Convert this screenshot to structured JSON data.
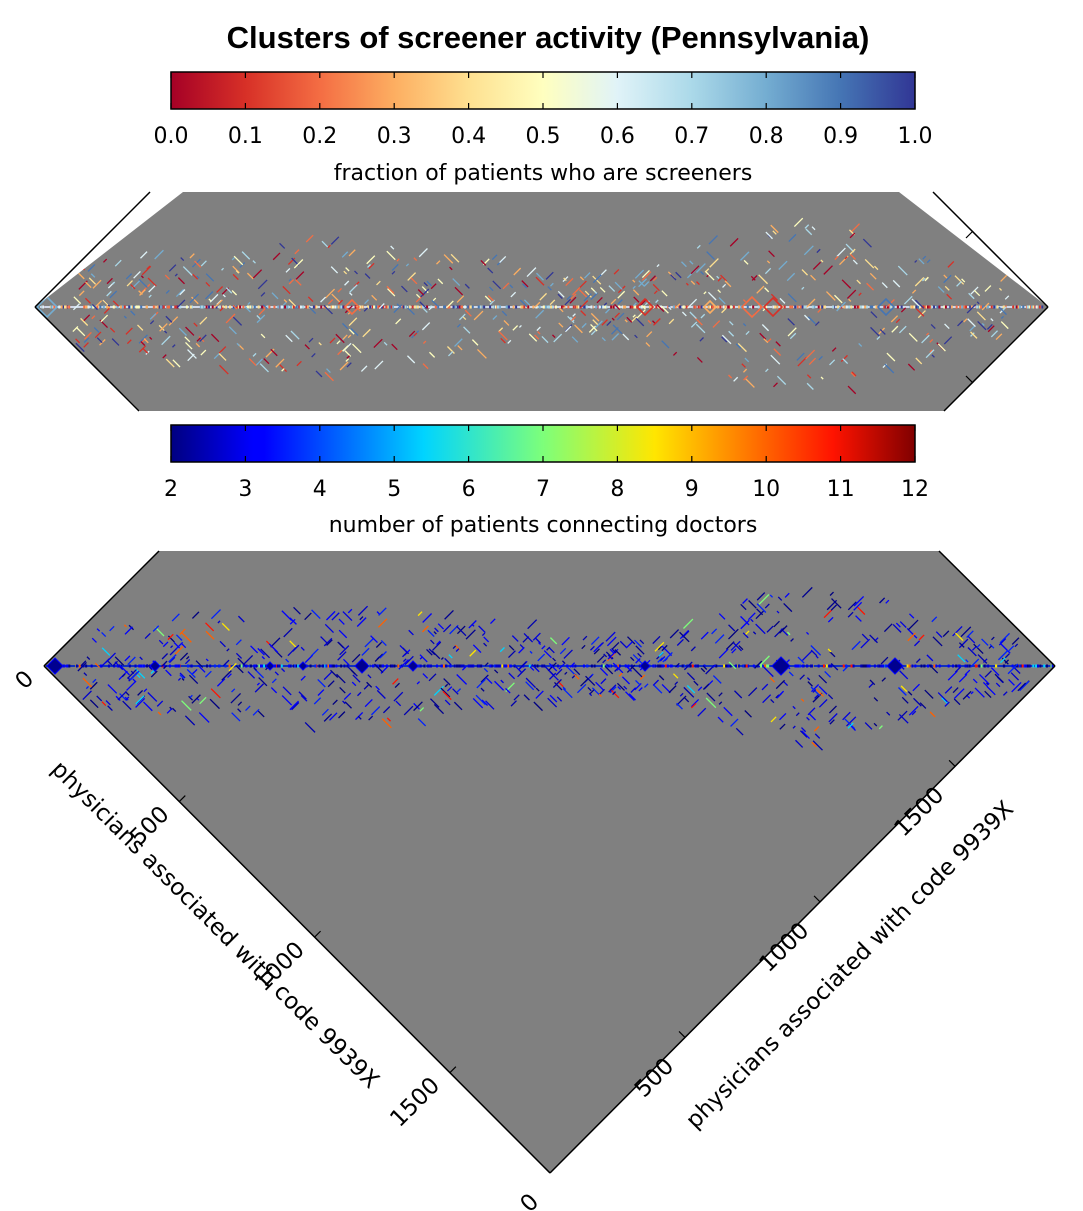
{
  "chart_data": [
    {
      "type": "heatmap",
      "title": "Clusters of screener activity (Pennsylvania)",
      "colorbar": {
        "label": "fraction of patients who are screeners",
        "range": [
          0.0,
          1.0
        ],
        "colormap": "RdYlBu",
        "ticks": [
          "0.0",
          "0.1",
          "0.2",
          "0.3",
          "0.4",
          "0.5",
          "0.6",
          "0.7",
          "0.8",
          "0.9",
          "1.0"
        ]
      },
      "background_color": "#808080",
      "view": "upper-triangle matrix rotated 45 degrees (diamond), cropped top and bottom"
    },
    {
      "type": "heatmap",
      "colorbar": {
        "label": "number of patients connecting doctors",
        "range": [
          2,
          12
        ],
        "colormap": "jet",
        "ticks": [
          "2",
          "3",
          "4",
          "5",
          "6",
          "7",
          "8",
          "9",
          "10",
          "11",
          "12"
        ]
      },
      "background_color": "#808080",
      "view": "upper-triangle matrix rotated 45 degrees (triangle)",
      "xlabel": "physicians associated with code 9939X",
      "ylabel": "physicians associated with code 9939X",
      "axis_range": [
        0,
        1870
      ],
      "left_axis_ticks": [
        "0",
        "500",
        "1000",
        "1500"
      ],
      "right_axis_ticks": [
        "0",
        "500",
        "1000",
        "1500"
      ]
    }
  ],
  "colors": {
    "background": "#ffffff",
    "matrix_background": "#808080",
    "axes": "#000000"
  }
}
